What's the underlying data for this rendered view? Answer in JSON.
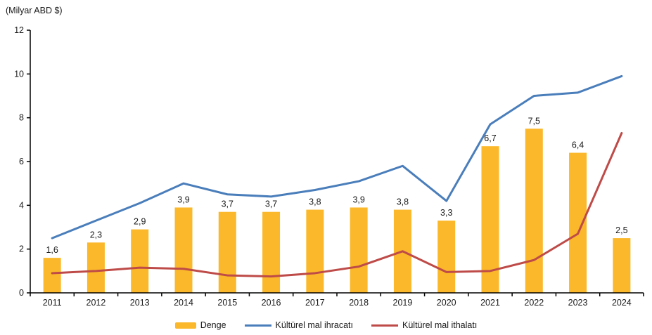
{
  "chart_data": {
    "type": "combo-bar-line",
    "title": "(Milyar ABD $)",
    "categories": [
      "2011",
      "2012",
      "2013",
      "2014",
      "2015",
      "2016",
      "2017",
      "2018",
      "2019",
      "2020",
      "2021",
      "2022",
      "2023",
      "2024"
    ],
    "series": [
      {
        "name": "Denge",
        "type": "bar",
        "color": "#FBB82A",
        "values": [
          1.6,
          2.3,
          2.9,
          3.9,
          3.7,
          3.7,
          3.8,
          3.9,
          3.8,
          3.3,
          6.7,
          7.5,
          6.4,
          2.5
        ],
        "labels": [
          "1,6",
          "2,3",
          "2,9",
          "3,9",
          "3,7",
          "3,7",
          "3,8",
          "3,9",
          "3,8",
          "3,3",
          "6,7",
          "7,5",
          "6,4",
          "2,5"
        ]
      },
      {
        "name": "Kültürel mal ihracatı",
        "type": "line",
        "color": "#4A7EBB",
        "values": [
          2.5,
          3.3,
          4.1,
          5.0,
          4.5,
          4.4,
          4.7,
          5.1,
          5.8,
          4.2,
          7.7,
          9.0,
          9.15,
          9.9
        ]
      },
      {
        "name": "Kültürel mal ithalatı",
        "type": "line",
        "color": "#BE4B48",
        "values": [
          0.9,
          1.0,
          1.15,
          1.1,
          0.8,
          0.75,
          0.9,
          1.2,
          1.9,
          0.95,
          1.0,
          1.5,
          2.7,
          7.3
        ]
      }
    ],
    "ylim": [
      0,
      12
    ],
    "ytick_step": 2,
    "ytick_labels": [
      "0",
      "2",
      "4",
      "6",
      "8",
      "10",
      "12"
    ],
    "grid": false,
    "legend_position": "bottom",
    "axis_color": "#000000",
    "text_color": "#1a1a1a"
  }
}
